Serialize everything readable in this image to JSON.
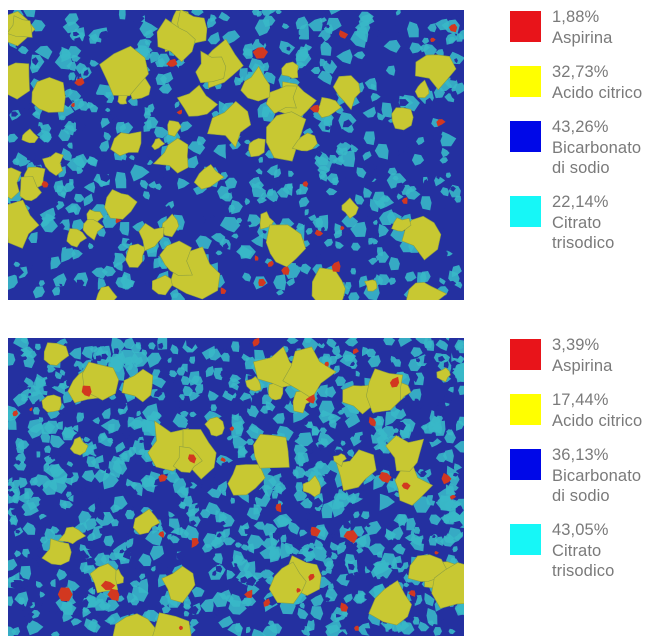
{
  "colors": {
    "aspirina": "#e8141a",
    "acido_citrico": "#ffff00",
    "bicarbonato": "#0008e8",
    "citrato": "#16f7f7",
    "map_blue": "#2430a0",
    "map_cyan": "#38b8c8",
    "map_yellow": "#c8c832",
    "map_red": "#d23820"
  },
  "panels": [
    {
      "legend": [
        {
          "percent": "1,88%",
          "label_lines": [
            "Aspirina"
          ],
          "color_key": "aspirina"
        },
        {
          "percent": "32,73%",
          "label_lines": [
            "Acido citrico"
          ],
          "color_key": "acido_citrico"
        },
        {
          "percent": "43,26%",
          "label_lines": [
            "Bicarbonato",
            "di sodio"
          ],
          "color_key": "bicarbonato"
        },
        {
          "percent": "22,14%",
          "label_lines": [
            "Citrato",
            "trisodico"
          ],
          "color_key": "citrato"
        }
      ]
    },
    {
      "legend": [
        {
          "percent": "3,39%",
          "label_lines": [
            "Aspirina"
          ],
          "color_key": "aspirina"
        },
        {
          "percent": "17,44%",
          "label_lines": [
            "Acido citrico"
          ],
          "color_key": "acido_citrico"
        },
        {
          "percent": "36,13%",
          "label_lines": [
            "Bicarbonato",
            "di sodio"
          ],
          "color_key": "bicarbonato"
        },
        {
          "percent": "43,05%",
          "label_lines": [
            "Citrato",
            "trisodico"
          ],
          "color_key": "citrato"
        }
      ]
    }
  ]
}
